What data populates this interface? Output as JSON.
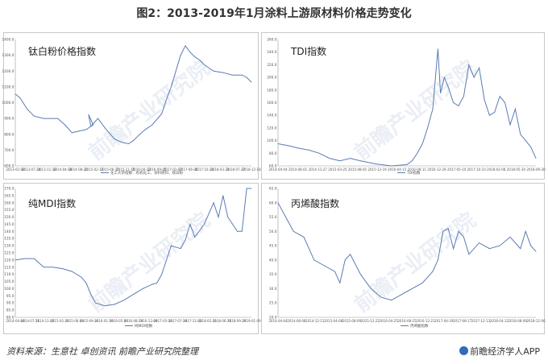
{
  "title": "图2：2013-2019年1月涂料上游原材料价格走势变化",
  "source": "资料来源：生意社 卓创资讯 前瞻产业研究院整理",
  "brand": "前瞻经济学人APP",
  "watermark": "前瞻产业研究院",
  "line_color": "#5b7bb2",
  "chart_data": [
    {
      "type": "line",
      "title": "钛白粉价格指数",
      "legend": "化工大宗指数：有机化工、涂料原料、钛白粉",
      "ylim": [
        600,
        1400
      ],
      "yticks": [
        "600.0",
        "700.0",
        "800.0",
        "900.0",
        "1000.0",
        "1100.0",
        "1200.0",
        "1300.0",
        "1400.0"
      ],
      "xticks": [
        "2013-02-08",
        "2013-07-24",
        "2013-11-18",
        "2014-04-08",
        "2014-08-26",
        "2015-02-13",
        "2015-06-15",
        "2015-11-16",
        "2016-04-12",
        "2016-09-05",
        "2017-02-07",
        "2017-06-06",
        "2017-10-26",
        "2018-03-21",
        "2018-07-27",
        "2018-12-18"
      ],
      "x": [
        0,
        0.02,
        0.05,
        0.08,
        0.12,
        0.18,
        0.21,
        0.24,
        0.27,
        0.3,
        0.33,
        0.31,
        0.32,
        0.35,
        0.38,
        0.42,
        0.45,
        0.48,
        0.5,
        0.52,
        0.55,
        0.58,
        0.62,
        0.64,
        0.66,
        0.68,
        0.7,
        0.72,
        0.74,
        0.76,
        0.78,
        0.8,
        0.84,
        0.88,
        0.92,
        0.96,
        0.98,
        1.0
      ],
      "values": [
        1055,
        1030,
        960,
        915,
        900,
        900,
        860,
        810,
        820,
        830,
        860,
        925,
        850,
        900,
        840,
        770,
        750,
        740,
        760,
        790,
        830,
        860,
        930,
        1020,
        1100,
        1200,
        1300,
        1360,
        1320,
        1290,
        1270,
        1240,
        1200,
        1190,
        1175,
        1175,
        1160,
        1130
      ]
    },
    {
      "type": "line",
      "title": "TDI指数",
      "legend": "TDI指数",
      "ylim": [
        60,
        260
      ],
      "yticks": [
        "60.0",
        "80.0",
        "100.0",
        "120.0",
        "140.0",
        "160.0",
        "180.0",
        "200.0",
        "220.0",
        "240.0",
        "260.0"
      ],
      "xticks": [
        "2014-04-04",
        "2014-08-01",
        "2014-11-27",
        "2015-03-25",
        "2015-08-05",
        "2015-12-19",
        "2016-04-15",
        "2016-08-11",
        "2016-12-29",
        "2017-05-10",
        "2017-10-10",
        "2018-02-08",
        "2018-05-30",
        "2018-09-30"
      ],
      "x": [
        0,
        0.04,
        0.08,
        0.12,
        0.16,
        0.2,
        0.24,
        0.28,
        0.32,
        0.38,
        0.44,
        0.5,
        0.52,
        0.54,
        0.56,
        0.58,
        0.6,
        0.62,
        0.63,
        0.645,
        0.66,
        0.68,
        0.7,
        0.72,
        0.74,
        0.76,
        0.78,
        0.8,
        0.82,
        0.84,
        0.86,
        0.88,
        0.9,
        0.92,
        0.94,
        0.96,
        0.98,
        1.0
      ],
      "values": [
        95,
        92,
        88,
        85,
        80,
        72,
        68,
        72,
        68,
        63,
        60,
        62,
        68,
        80,
        95,
        120,
        150,
        245,
        175,
        200,
        185,
        160,
        155,
        170,
        220,
        200,
        215,
        165,
        140,
        145,
        170,
        160,
        125,
        150,
        110,
        100,
        90,
        72
      ]
    },
    {
      "type": "line",
      "title": "纯MDI指数",
      "legend": "纯MDI指数",
      "ylim": [
        80,
        170
      ],
      "yticks": [
        "80.0",
        "85.0",
        "90.0",
        "95.0",
        "100.0",
        "105.0",
        "110.0",
        "115.0",
        "120.0",
        "125.0",
        "130.0",
        "135.0",
        "140.0",
        "145.0",
        "150.0",
        "155.0",
        "160.0",
        "165.0",
        "170.0"
      ],
      "xticks": [
        "2014-04-04",
        "2014-07-21",
        "2014-11-05",
        "2015-02-20",
        "2015-06-09",
        "2015-09-30",
        "2016-01-19",
        "2016-05-06",
        "2016-08-23",
        "2016-12-09",
        "2017-03-28",
        "2017-07-14",
        "2017-11-02",
        "2018-02-21",
        "2018-06-11",
        "2018-09-26",
        "2019-01-09"
      ],
      "x": [
        0,
        0.04,
        0.08,
        0.12,
        0.16,
        0.2,
        0.24,
        0.28,
        0.3,
        0.32,
        0.34,
        0.38,
        0.42,
        0.46,
        0.5,
        0.54,
        0.58,
        0.6,
        0.62,
        0.66,
        0.7,
        0.72,
        0.74,
        0.76,
        0.8,
        0.84,
        0.86,
        0.88,
        0.9,
        0.92,
        0.94,
        0.96,
        0.98,
        1.0
      ],
      "values": [
        120,
        121,
        121,
        115,
        115,
        114,
        112,
        108,
        104,
        96,
        90,
        88,
        89,
        92,
        96,
        100,
        103,
        104,
        110,
        130,
        128,
        134,
        145,
        136,
        145,
        160,
        150,
        165,
        150,
        145,
        140,
        140,
        170,
        170
      ]
    },
    {
      "type": "line",
      "title": "丙烯酸指数",
      "legend": "丙烯酸指数",
      "ylim": [
        20,
        65
      ],
      "yticks": [
        "20.0",
        "25.0",
        "30.0",
        "35.0",
        "40.0",
        "45.0",
        "50.0",
        "55.0",
        "60.0",
        "65.0"
      ],
      "xticks": [
        "2014-04-04",
        "2014-08-08",
        "2014-12-11",
        "2015-04-08",
        "2015-08-09",
        "2015-12-22",
        "2016-04-25",
        "2016-08-25",
        "2016-12-21",
        "2017-04-19",
        "2017-08-17",
        "2017-12-13",
        "2018-04-12",
        "2018-08-09",
        "2018-12-06"
      ],
      "x": [
        0,
        0.03,
        0.06,
        0.1,
        0.14,
        0.18,
        0.22,
        0.24,
        0.26,
        0.28,
        0.32,
        0.36,
        0.4,
        0.44,
        0.48,
        0.52,
        0.56,
        0.6,
        0.62,
        0.64,
        0.66,
        0.68,
        0.7,
        0.72,
        0.74,
        0.78,
        0.82,
        0.86,
        0.9,
        0.94,
        0.96,
        0.98,
        1.0
      ],
      "values": [
        60,
        55,
        50,
        48,
        40,
        38,
        36,
        32,
        40,
        42,
        35,
        30,
        27,
        26,
        28,
        30,
        32,
        36,
        40,
        50,
        51,
        44,
        50,
        48,
        42,
        46,
        44,
        45,
        48,
        44,
        50,
        45,
        43
      ]
    }
  ]
}
